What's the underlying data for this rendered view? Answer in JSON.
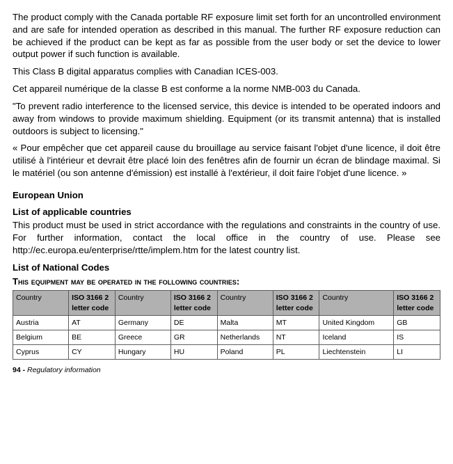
{
  "paragraphs": {
    "p1": "The product comply with the Canada portable RF exposure limit set forth for an uncontrolled environment and are safe for intended operation as described in this manual. The further RF exposure reduction can be achieved if the product can be kept as far as possible from the user body or set the device to lower output power if such function is available.",
    "p2": "This Class B digital apparatus complies with Canadian ICES-003.",
    "p3": "Cet appareil numérique de la classe B est conforme a la norme NMB-003 du Canada.",
    "p4": "\"To prevent radio interference to the licensed service, this device is intended to be operated indoors and away from windows to provide maximum shielding. Equipment (or its transmit antenna) that is installed outdoors is subject to licensing.\"",
    "p5": "« Pour empêcher que cet appareil cause du brouillage au service faisant l'objet d'une licence, il doit être utilisé à l'intérieur et devrait être placé loin des fenêtres afin de fournir un écran de blindage maximal. Si le matériel (ou son antenne d'émission) est installé à l'extérieur, il doit faire l'objet d'une licence. »"
  },
  "eu_heading": "European Union",
  "eu_sub1": "List of applicable countries",
  "eu_text": "This product must be used in strict accordance with the regulations and constraints in the country of use. For further information, contact the local office in the country of use. Please see http://ec.europa.eu/enterprise/rtte/implem.htm for the latest country list.",
  "eu_sub2": "List of National Codes",
  "caps_line": "This equipment may be operated in the following countries:",
  "table": {
    "head_country": "Country",
    "head_code": "ISO 3166 2 letter code",
    "rows": [
      {
        "c1": "Austria",
        "k1": "AT",
        "c2": "Germany",
        "k2": "DE",
        "c3": "Malta",
        "k3": "MT",
        "c4": "United Kingdom",
        "k4": "GB"
      },
      {
        "c1": "Belgium",
        "k1": "BE",
        "c2": "Greece",
        "k2": "GR",
        "c3": "Netherlands",
        "k3": "NT",
        "c4": "Iceland",
        "k4": "IS"
      },
      {
        "c1": "Cyprus",
        "k1": "CY",
        "c2": "Hungary",
        "k2": "HU",
        "c3": "Poland",
        "k3": "PL",
        "c4": "Liechtenstein",
        "k4": "LI"
      }
    ]
  },
  "footer": {
    "page": "94 -",
    "title": " Regulatory information"
  },
  "colors": {
    "header_bg": "#b1b1b1",
    "border": "#5c5c5c"
  }
}
